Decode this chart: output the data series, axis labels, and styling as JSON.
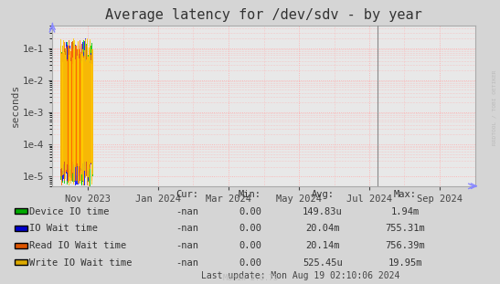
{
  "title": "Average latency for /dev/sdv - by year",
  "ylabel": "seconds",
  "background_color": "#d5d5d5",
  "plot_bg_color": "#e8e8e8",
  "title_fontsize": 11,
  "axis_fontsize": 7.5,
  "legend_fontsize": 7.5,
  "watermark": "RRDTOOL / TOBI OETIKER",
  "munin_version": "Munin 2.0.73",
  "last_update": "Last update: Mon Aug 19 02:10:06 2024",
  "series": [
    {
      "label": "Device IO time",
      "color": "#00cc00",
      "legend_color": "#00aa00"
    },
    {
      "label": "IO Wait time",
      "color": "#0000ff",
      "legend_color": "#0000cc"
    },
    {
      "label": "Read IO Wait time",
      "color": "#ff6600",
      "legend_color": "#dd5500"
    },
    {
      "label": "Write IO Wait time",
      "color": "#ffcc00",
      "legend_color": "#ddaa00"
    }
  ],
  "stats": [
    {
      "label": "Device IO time",
      "cur": "-nan",
      "min": "0.00",
      "avg": "149.83u",
      "max": "1.94m"
    },
    {
      "label": "IO Wait time",
      "cur": "-nan",
      "min": "0.00",
      "avg": "20.04m",
      "max": "755.31m"
    },
    {
      "label": "Read IO Wait time",
      "cur": "-nan",
      "min": "0.00",
      "avg": "20.14m",
      "max": "756.39m"
    },
    {
      "label": "Write IO Wait time",
      "cur": "-nan",
      "min": "0.00",
      "avg": "525.45u",
      "max": "19.95m"
    }
  ],
  "xaxis_labels": [
    "Nov 2023",
    "Jan 2024",
    "Mar 2024",
    "May 2024",
    "Jul 2024",
    "Sep 2024"
  ],
  "xaxis_positions": [
    0.083,
    0.25,
    0.417,
    0.583,
    0.75,
    0.917
  ],
  "yticks": [
    1e-05,
    0.0001,
    0.001,
    0.01,
    0.1
  ],
  "vline_pos": 0.77,
  "border_color": "#aaaaaa"
}
